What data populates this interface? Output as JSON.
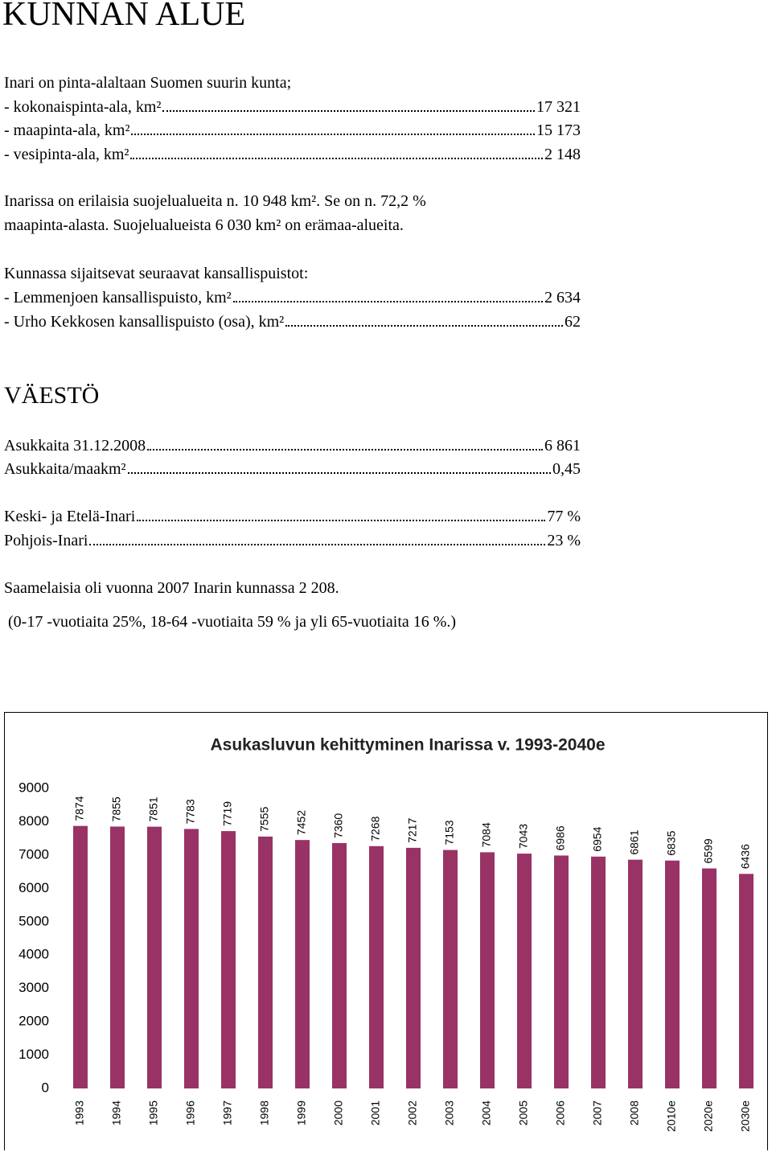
{
  "title": "KUNNAN ALUE",
  "area_intro": "Inari on pinta-alaltaan Suomen suurin kunta;",
  "area_rows": [
    {
      "label": "- kokonaispinta-ala, km²",
      "value": "17 321"
    },
    {
      "label": "- maapinta-ala, km²",
      "value": "15 173"
    },
    {
      "label": "- vesipinta-ala, km²",
      "value": "2 148"
    }
  ],
  "protected_line1": "Inarissa on erilaisia suojelualueita n. 10 948 km². Se on n. 72,2 %",
  "protected_line2": "maapinta-alasta. Suojelualueista 6 030 km² on erämaa-alueita.",
  "parks_intro": "Kunnassa sijaitsevat seuraavat kansallispuistot:",
  "park_rows": [
    {
      "label": "- Lemmenjoen kansallispuisto, km²",
      "value": "2 634"
    },
    {
      "label": "- Urho Kekkosen kansallispuisto (osa), km²",
      "value": "62"
    }
  ],
  "population_title": "VÄESTÖ",
  "population_rows": [
    {
      "label": "Asukkaita 31.12.2008",
      "value": "6 861"
    },
    {
      "label": "Asukkaita/maakm²",
      "value": "0,45"
    }
  ],
  "region_rows": [
    {
      "label": "Keski- ja Etelä-Inari",
      "value": "77 %"
    },
    {
      "label": "Pohjois-Inari",
      "value": "23 %"
    }
  ],
  "sami_text": "Saamelaisia oli vuonna 2007 Inarin kunnassa  2 208.",
  "age_text": "(0-17 -vuotiaita  25%, 18-64 -vuotiaita 59 % ja yli 65-vuotiaita 16 %.)",
  "chart_data": {
    "type": "bar",
    "title": "Asukasluvun kehittyminen Inarissa v. 1993-2040e",
    "categories": [
      "1993",
      "1994",
      "1995",
      "1996",
      "1997",
      "1998",
      "1999",
      "2000",
      "2001",
      "2002",
      "2003",
      "2004",
      "2005",
      "2006",
      "2007",
      "2008",
      "2010e",
      "2020e",
      "2030e"
    ],
    "values": [
      7874,
      7855,
      7851,
      7783,
      7719,
      7555,
      7452,
      7360,
      7268,
      7217,
      7153,
      7084,
      7043,
      6986,
      6954,
      6861,
      6835,
      6599,
      6436
    ],
    "color": "#993366",
    "ylim": [
      0,
      9000
    ],
    "yticks": [
      0,
      1000,
      2000,
      3000,
      4000,
      5000,
      6000,
      7000,
      8000,
      9000
    ]
  }
}
